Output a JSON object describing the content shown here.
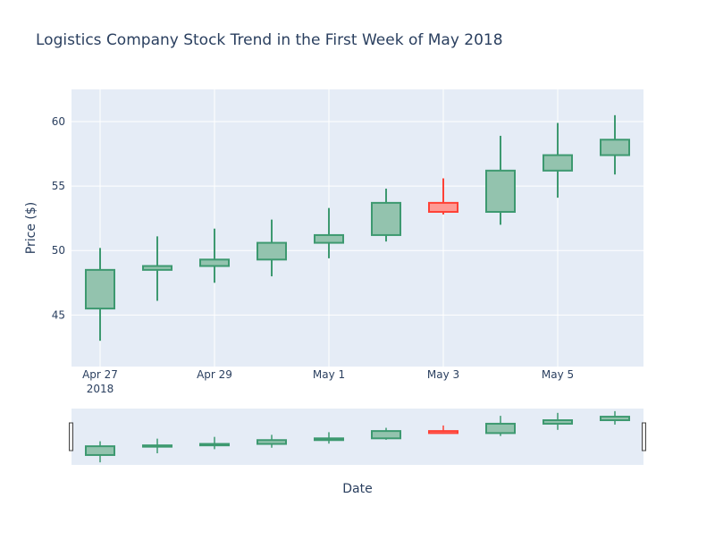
{
  "chart_data": {
    "type": "candlestick",
    "title": "Logistics Company Stock Trend in the First Week of May 2018",
    "xlabel": "Date",
    "ylabel": "Price ($)",
    "ylim": [
      41,
      62.5
    ],
    "yticks": [
      45,
      50,
      55,
      60
    ],
    "xlim": [
      "2018-04-26 12:00",
      "2018-05-06 12:00"
    ],
    "xticks": [
      {
        "date": "2018-04-27",
        "label": "Apr 27",
        "sublabel": "2018"
      },
      {
        "date": "2018-04-29",
        "label": "Apr 29",
        "sublabel": ""
      },
      {
        "date": "2018-05-01",
        "label": "May 1",
        "sublabel": ""
      },
      {
        "date": "2018-05-03",
        "label": "May 3",
        "sublabel": ""
      },
      {
        "date": "2018-05-05",
        "label": "May 5",
        "sublabel": ""
      }
    ],
    "series": [
      {
        "date": "2018-04-27",
        "open": 45.5,
        "high": 50.2,
        "low": 43.0,
        "close": 48.5
      },
      {
        "date": "2018-04-28",
        "open": 48.5,
        "high": 51.1,
        "low": 46.1,
        "close": 48.8
      },
      {
        "date": "2018-04-29",
        "open": 48.8,
        "high": 51.7,
        "low": 47.5,
        "close": 49.3
      },
      {
        "date": "2018-04-30",
        "open": 49.3,
        "high": 52.4,
        "low": 48.0,
        "close": 50.6
      },
      {
        "date": "2018-05-01",
        "open": 50.6,
        "high": 53.3,
        "low": 49.4,
        "close": 51.2
      },
      {
        "date": "2018-05-02",
        "open": 51.2,
        "high": 54.8,
        "low": 50.7,
        "close": 53.7
      },
      {
        "date": "2018-05-03",
        "open": 53.7,
        "high": 55.6,
        "low": 52.8,
        "close": 53.0
      },
      {
        "date": "2018-05-04",
        "open": 53.0,
        "high": 58.9,
        "low": 52.0,
        "close": 56.2
      },
      {
        "date": "2018-05-05",
        "open": 56.2,
        "high": 59.9,
        "low": 54.1,
        "close": 57.4
      },
      {
        "date": "2018-05-06",
        "open": 57.4,
        "high": 60.5,
        "low": 55.9,
        "close": 58.6
      }
    ],
    "colors": {
      "increasing_line": "#3d9970",
      "increasing_fill": "#93c3ae",
      "decreasing_line": "#ff4136",
      "decreasing_fill": "#fe9a94",
      "plot_bg": "#e5ecf6",
      "grid": "#ffffff",
      "text": "#2a3f5f"
    },
    "rangeslider": true,
    "grid": true,
    "legend": "none"
  }
}
